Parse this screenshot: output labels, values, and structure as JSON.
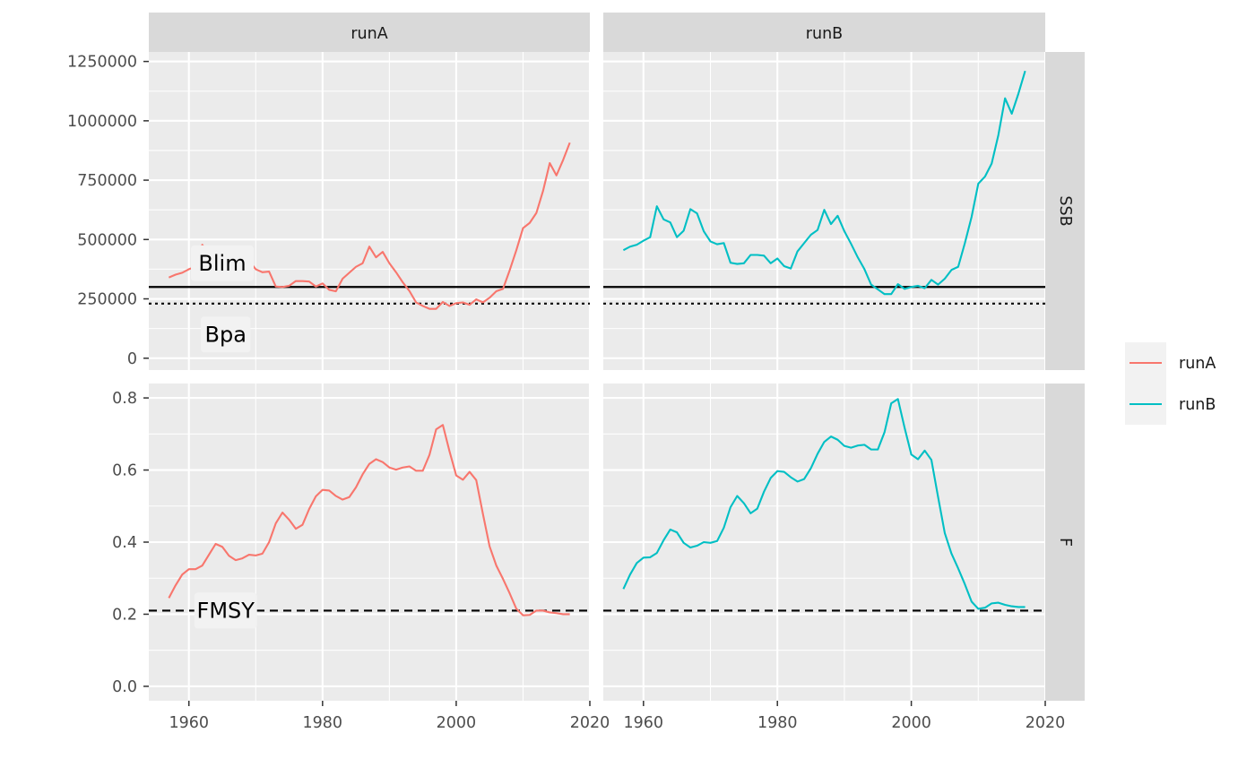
{
  "chart_data": {
    "type": "line",
    "facet_columns": [
      "runA",
      "runB"
    ],
    "facet_rows": [
      "SSB",
      "F"
    ],
    "series": [
      {
        "name": "runA",
        "color": "#F8766D"
      },
      {
        "name": "runB",
        "color": "#00BFC4"
      }
    ],
    "legend": {
      "position": "right",
      "items": [
        "runA",
        "runB"
      ]
    },
    "x_axis": {
      "range": [
        1954,
        2020
      ],
      "ticks": [
        1960,
        1980,
        2000,
        2020
      ],
      "tick_labels": [
        "1960",
        "1980",
        "2000",
        "2020"
      ]
    },
    "rows": {
      "SSB": {
        "ylim": [
          -50000,
          1290000
        ],
        "ticks": [
          0,
          250000,
          500000,
          750000,
          1000000,
          1250000
        ],
        "tick_labels": [
          "0",
          "250000",
          "500000",
          "750000",
          "1000000",
          "1250000"
        ],
        "reference_lines": [
          {
            "label": "Blim",
            "value": 300000,
            "style": "solid"
          },
          {
            "label": "Bpa",
            "value": 230000,
            "style": "dotted"
          }
        ]
      },
      "F": {
        "ylim": [
          -0.04,
          0.84
        ],
        "ticks": [
          0.0,
          0.2,
          0.4,
          0.6,
          0.8
        ],
        "tick_labels": [
          "0.0",
          "0.2",
          "0.4",
          "0.6",
          "0.8"
        ],
        "reference_lines": [
          {
            "label": "FMSY",
            "value": 0.21,
            "style": "dashed"
          }
        ]
      }
    },
    "years": [
      1957,
      1958,
      1959,
      1960,
      1961,
      1962,
      1963,
      1964,
      1965,
      1966,
      1967,
      1968,
      1969,
      1970,
      1971,
      1972,
      1973,
      1974,
      1975,
      1976,
      1977,
      1978,
      1979,
      1980,
      1981,
      1982,
      1983,
      1984,
      1985,
      1986,
      1987,
      1988,
      1989,
      1990,
      1991,
      1992,
      1993,
      1994,
      1995,
      1996,
      1997,
      1998,
      1999,
      2000,
      2001,
      2002,
      2003,
      2004,
      2005,
      2006,
      2007,
      2008,
      2009,
      2010,
      2011,
      2012,
      2013,
      2014,
      2015,
      2016,
      2017
    ],
    "data": {
      "runA": {
        "SSB": [
          340000,
          352000,
          360000,
          375000,
          385000,
          478000,
          440000,
          450000,
          385000,
          405000,
          470000,
          455000,
          410000,
          375000,
          362000,
          365000,
          302000,
          300000,
          305000,
          325000,
          325000,
          323000,
          302000,
          315000,
          288000,
          282000,
          335000,
          360000,
          385000,
          400000,
          470000,
          425000,
          448000,
          400000,
          362000,
          320000,
          283000,
          235000,
          220000,
          208000,
          208000,
          237000,
          220000,
          232000,
          235000,
          225000,
          248000,
          235000,
          255000,
          282000,
          292000,
          370000,
          455000,
          548000,
          570000,
          612000,
          705000,
          822000,
          770000,
          835000,
          908000
        ],
        "F": [
          0.245,
          0.28,
          0.31,
          0.325,
          0.325,
          0.335,
          0.365,
          0.395,
          0.387,
          0.362,
          0.35,
          0.355,
          0.365,
          0.363,
          0.368,
          0.4,
          0.452,
          0.482,
          0.462,
          0.437,
          0.448,
          0.492,
          0.527,
          0.545,
          0.543,
          0.528,
          0.518,
          0.525,
          0.552,
          0.588,
          0.617,
          0.63,
          0.622,
          0.607,
          0.601,
          0.607,
          0.61,
          0.598,
          0.598,
          0.642,
          0.713,
          0.725,
          0.652,
          0.585,
          0.573,
          0.595,
          0.572,
          0.478,
          0.388,
          0.335,
          0.298,
          0.258,
          0.215,
          0.197,
          0.198,
          0.21,
          0.21,
          0.205,
          0.203,
          0.2,
          0.2
        ]
      },
      "runB": {
        "SSB": [
          455000,
          470000,
          478000,
          495000,
          510000,
          640000,
          585000,
          572000,
          510000,
          537000,
          628000,
          610000,
          535000,
          492000,
          480000,
          485000,
          402000,
          397000,
          400000,
          435000,
          435000,
          432000,
          400000,
          420000,
          388000,
          378000,
          450000,
          485000,
          520000,
          540000,
          625000,
          565000,
          600000,
          535000,
          482000,
          425000,
          375000,
          310000,
          290000,
          270000,
          270000,
          312000,
          292000,
          300000,
          305000,
          295000,
          330000,
          310000,
          335000,
          372000,
          385000,
          485000,
          595000,
          735000,
          765000,
          820000,
          940000,
          1095000,
          1030000,
          1115000,
          1210000
        ],
        "F": [
          0.27,
          0.31,
          0.342,
          0.357,
          0.358,
          0.37,
          0.405,
          0.435,
          0.427,
          0.398,
          0.385,
          0.39,
          0.4,
          0.398,
          0.403,
          0.44,
          0.497,
          0.528,
          0.508,
          0.48,
          0.493,
          0.54,
          0.578,
          0.597,
          0.595,
          0.58,
          0.568,
          0.575,
          0.605,
          0.645,
          0.678,
          0.693,
          0.684,
          0.667,
          0.662,
          0.668,
          0.67,
          0.657,
          0.657,
          0.705,
          0.785,
          0.797,
          0.717,
          0.643,
          0.63,
          0.654,
          0.628,
          0.525,
          0.425,
          0.368,
          0.327,
          0.283,
          0.235,
          0.215,
          0.218,
          0.23,
          0.232,
          0.226,
          0.222,
          0.22,
          0.22
        ]
      }
    }
  }
}
